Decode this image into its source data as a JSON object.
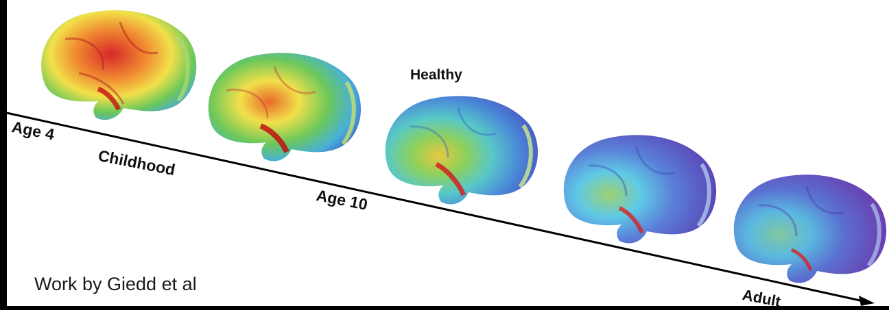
{
  "labels": {
    "age_4": "Age 4",
    "childhood": "Childhood",
    "age_10": "Age 10",
    "healthy": "Healthy",
    "adult": "Adult"
  },
  "credit": "Work by Giedd et al",
  "colors": {
    "immature_red": "#d21f1f",
    "yellow": "#f2e04a",
    "green": "#4fc35a",
    "cyan": "#5fc9e6",
    "blue": "#4a62c8",
    "mature_violet": "#6a3fb0"
  },
  "icons": [
    "brain-icon"
  ]
}
